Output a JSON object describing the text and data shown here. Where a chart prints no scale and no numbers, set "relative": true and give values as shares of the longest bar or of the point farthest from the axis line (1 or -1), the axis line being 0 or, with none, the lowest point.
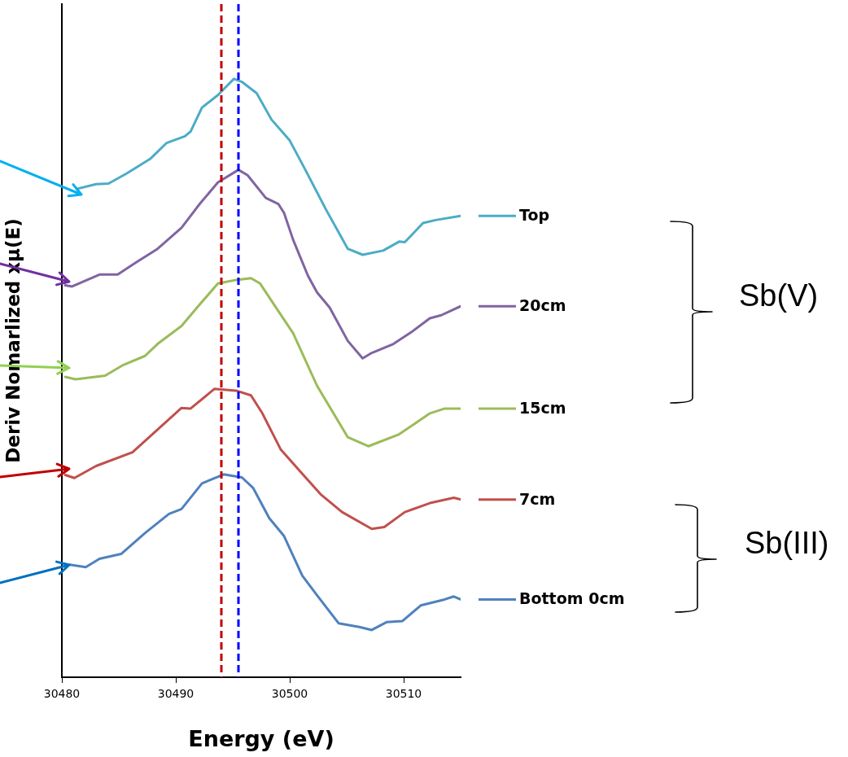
{
  "chart_data": {
    "type": "line",
    "xlabel": "Energy (eV)",
    "ylabel": "Deriv Nomarlized xμ(E)",
    "relative": true,
    "xlim": [
      30480,
      30515
    ],
    "xticks": [
      30480,
      30490,
      30500,
      30510
    ],
    "marker": "none",
    "line_style": "solid",
    "legend": "right",
    "series": [
      {
        "name": "Top",
        "color": "#4bacc6",
        "x": [
          30481.3,
          30483.0,
          30484.1,
          30485.7,
          30487.8,
          30489.2,
          30490.8,
          30491.3,
          30492.3,
          30493.7,
          30495.1,
          30495.8,
          30497.1,
          30498.4,
          30500.0,
          30501.4,
          30503.2,
          30505.1,
          30506.4,
          30508.2,
          30509.6,
          30510.1,
          30511.7,
          30512.8,
          30515.0
        ],
        "values": [
          0.816,
          0.824,
          0.825,
          0.842,
          0.867,
          0.893,
          0.904,
          0.912,
          0.952,
          0.973,
          1.0,
          0.995,
          0.976,
          0.932,
          0.897,
          0.847,
          0.781,
          0.716,
          0.706,
          0.713,
          0.728,
          0.727,
          0.759,
          0.764,
          0.771
        ]
      },
      {
        "name": "20cm",
        "color": "#8064a2",
        "x": [
          30480.3,
          30480.9,
          30483.3,
          30484.9,
          30486.5,
          30488.4,
          30490.5,
          30492.1,
          30493.7,
          30495.5,
          30496.3,
          30497.9,
          30499.0,
          30499.5,
          30500.3,
          30501.6,
          30502.4,
          30503.5,
          30505.1,
          30506.4,
          30507.2,
          30509.1,
          30510.7,
          30512.3,
          30513.3,
          30515.0
        ],
        "values": [
          0.655,
          0.653,
          0.673,
          0.673,
          0.693,
          0.716,
          0.751,
          0.791,
          0.827,
          0.848,
          0.839,
          0.801,
          0.791,
          0.776,
          0.731,
          0.671,
          0.643,
          0.618,
          0.562,
          0.533,
          0.542,
          0.557,
          0.577,
          0.6,
          0.605,
          0.62
        ]
      },
      {
        "name": "15cm",
        "color": "#9bbb59",
        "x": [
          30480.3,
          30481.2,
          30483.8,
          30485.4,
          30487.3,
          30488.4,
          30490.5,
          30492.1,
          30493.7,
          30495.3,
          30496.6,
          30497.4,
          30499.0,
          30500.3,
          30502.4,
          30505.1,
          30506.9,
          30509.6,
          30512.3,
          30513.6,
          30515.0
        ],
        "values": [
          0.502,
          0.498,
          0.504,
          0.522,
          0.537,
          0.557,
          0.587,
          0.623,
          0.658,
          0.664,
          0.667,
          0.658,
          0.612,
          0.575,
          0.487,
          0.401,
          0.386,
          0.406,
          0.441,
          0.449,
          0.449
        ]
      },
      {
        "name": "7cm",
        "color": "#c0504d",
        "x": [
          30480.3,
          30481.1,
          30483.0,
          30486.2,
          30490.5,
          30491.3,
          30493.4,
          30495.3,
          30496.6,
          30497.6,
          30499.2,
          30501.1,
          30502.7,
          30504.6,
          30507.2,
          30508.3,
          30510.1,
          30512.3,
          30514.4,
          30515.0
        ],
        "values": [
          0.338,
          0.333,
          0.353,
          0.376,
          0.45,
          0.449,
          0.482,
          0.479,
          0.471,
          0.441,
          0.381,
          0.34,
          0.306,
          0.276,
          0.248,
          0.251,
          0.276,
          0.291,
          0.3,
          0.297
        ]
      },
      {
        "name": "Bottom 0cm",
        "color": "#4f81bd",
        "x": [
          30480.7,
          30482.1,
          30483.3,
          30485.2,
          30487.3,
          30489.4,
          30490.5,
          30492.3,
          30494.2,
          30495.8,
          30496.8,
          30498.2,
          30499.5,
          30501.1,
          30502.4,
          30504.3,
          30506.1,
          30507.2,
          30508.5,
          30509.9,
          30511.5,
          30513.6,
          30514.4,
          30515.0
        ],
        "values": [
          0.188,
          0.184,
          0.198,
          0.206,
          0.241,
          0.273,
          0.281,
          0.324,
          0.339,
          0.334,
          0.316,
          0.266,
          0.236,
          0.17,
          0.137,
          0.09,
          0.084,
          0.079,
          0.092,
          0.094,
          0.12,
          0.13,
          0.135,
          0.13
        ]
      }
    ],
    "ref_lines": [
      {
        "axis": "x",
        "value": 30494.0,
        "color": "#c00000",
        "line_style": "dashed"
      },
      {
        "axis": "x",
        "value": 30495.5,
        "color": "#0000ff",
        "line_style": "dashed"
      }
    ],
    "annotations": [
      "Sb(V)",
      "Sb(III)"
    ]
  }
}
